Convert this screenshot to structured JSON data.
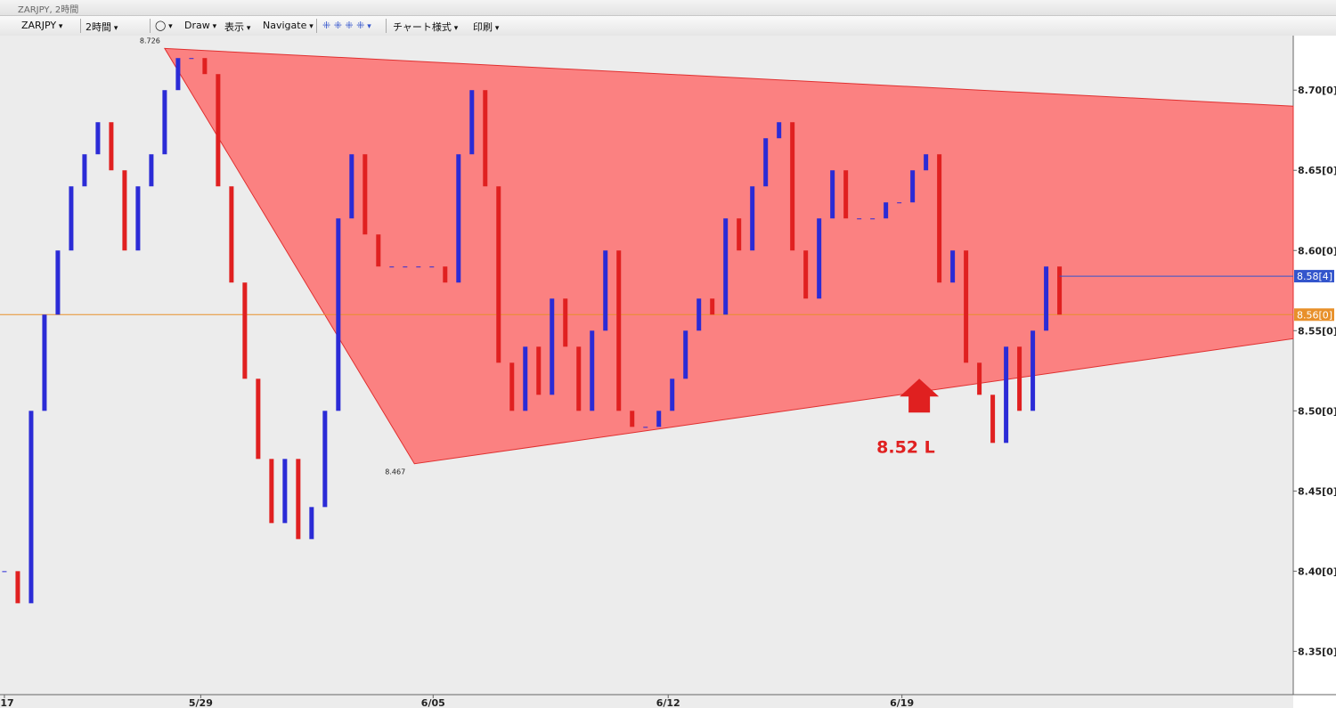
{
  "chart_data": {
    "type": "candlestick",
    "title": "ZARJPY, 2時間",
    "symbol": "ZARJPY",
    "timeframe": "2時間",
    "menu": [
      "Draw",
      "表示",
      "Navigate",
      "チャート様式",
      "印刷"
    ],
    "up_color": "#2b2bd6",
    "down_color": "#e02020",
    "closes": [
      8.4,
      8.38,
      8.5,
      8.56,
      8.6,
      8.64,
      8.66,
      8.68,
      8.65,
      8.6,
      8.64,
      8.66,
      8.7,
      8.72,
      8.72,
      8.71,
      8.64,
      8.58,
      8.52,
      8.47,
      8.43,
      8.47,
      8.42,
      8.44,
      8.5,
      8.62,
      8.66,
      8.61,
      8.59,
      8.59,
      8.59,
      8.59,
      8.59,
      8.58,
      8.66,
      8.7,
      8.64,
      8.53,
      8.5,
      8.54,
      8.51,
      8.57,
      8.54,
      8.5,
      8.55,
      8.6,
      8.5,
      8.49,
      8.49,
      8.5,
      8.52,
      8.55,
      8.57,
      8.56,
      8.62,
      8.6,
      8.64,
      8.67,
      8.68,
      8.6,
      8.57,
      8.62,
      8.65,
      8.62,
      8.62,
      8.62,
      8.63,
      8.63,
      8.65,
      8.66,
      8.58,
      8.6,
      8.53,
      8.51,
      8.48,
      8.54,
      8.5,
      8.55,
      8.59,
      8.56
    ],
    "xlim": [
      -0.33,
      96.5
    ],
    "xticks": [
      {
        "value": 0,
        "label": "17"
      },
      {
        "value": 14.7,
        "label": "5/29"
      },
      {
        "value": 32.1,
        "label": "6/05"
      },
      {
        "value": 49.7,
        "label": "6/12"
      },
      {
        "value": 67.2,
        "label": "6/19"
      }
    ],
    "ylim": [
      8.323,
      8.734
    ],
    "yticks": [
      {
        "value": 8.35,
        "label": "8.35[0]"
      },
      {
        "value": 8.4,
        "label": "8.40[0]"
      },
      {
        "value": 8.45,
        "label": "8.45[0]"
      },
      {
        "value": 8.5,
        "label": "8.50[0]"
      },
      {
        "value": 8.55,
        "label": "8.55[0]"
      },
      {
        "value": 8.6,
        "label": "8.60[0]"
      },
      {
        "value": 8.65,
        "label": "8.65[0]"
      },
      {
        "value": 8.7,
        "label": "8.70[0]"
      }
    ],
    "triangle": {
      "color": "#ff6666",
      "apex": {
        "x": 12,
        "y": 8.726
      },
      "base": {
        "x": 30.7,
        "y": 8.467
      },
      "right_top": 8.69,
      "right_bottom": 8.545
    },
    "channel_line": {
      "x": 79,
      "value": 8.584,
      "label": "8.58[4]",
      "color": "#3355cc"
    },
    "price_line": {
      "value": 8.56,
      "label": "8.56[0]",
      "color": "#e8902a"
    },
    "annotation": {
      "text": "8.52 L",
      "x": 68.5,
      "y": 8.52,
      "color": "#e02020"
    }
  }
}
